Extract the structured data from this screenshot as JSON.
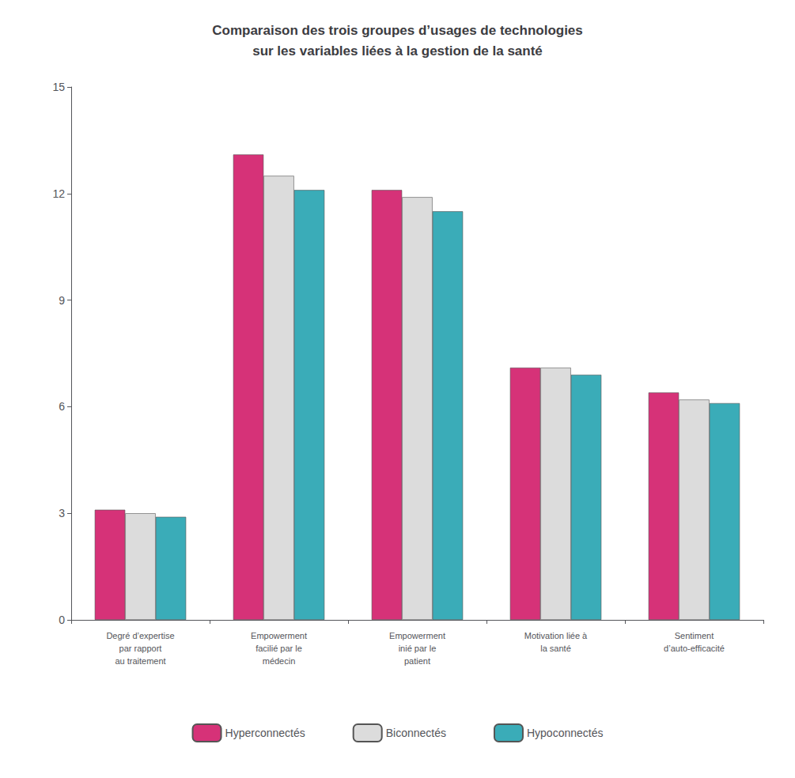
{
  "chart_data": {
    "type": "bar",
    "title": "Comparaison des trois groupes d’usages de technologies\nsur les variables liées à la gestion de la santé",
    "categories": [
      "Degré d’expertise\npar rapport\nau traitement",
      "Empowerment\nfacilié par le\nmédecin",
      "Empowerment\ninié par le\npatient",
      "Motivation liée à\nla santé",
      "Sentiment\nd’auto-efficacité"
    ],
    "series": [
      {
        "name": "Hyperconnectés",
        "color": "#D63278",
        "values": [
          3.1,
          13.1,
          12.1,
          7.1,
          6.4
        ]
      },
      {
        "name": "Biconnectés",
        "color": "#DCDCDC",
        "values": [
          3.0,
          12.5,
          11.9,
          7.1,
          6.2
        ]
      },
      {
        "name": "Hypoconnectés",
        "color": "#3AACB8",
        "values": [
          2.9,
          12.1,
          11.5,
          6.9,
          6.1
        ]
      }
    ],
    "ylim": [
      0,
      15
    ],
    "yticks": [
      0,
      3,
      6,
      9,
      12,
      15
    ],
    "grid": false,
    "legend": "bottom"
  }
}
